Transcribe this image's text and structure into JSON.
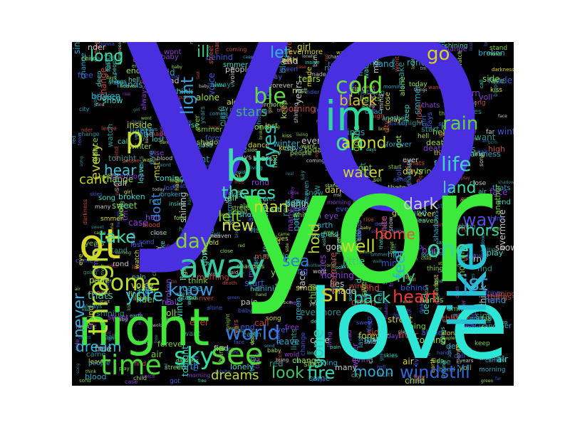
{
  "wordcloud": {
    "background": "#000000",
    "palette": [
      "#3dd9c8",
      "#2aa6c9",
      "#7ad13a",
      "#d8d82a",
      "#3b5bd6",
      "#c04a3a",
      "#8a3fd2",
      "#2c8f8f",
      "#c8c8c8",
      "#9be04a"
    ],
    "main_words": [
      {
        "text": "yo",
        "color": "#4a2fe0"
      },
      {
        "text": "yor",
        "color": "#3bea3b"
      },
      {
        "text": "love",
        "color": "#2ee6d6"
      },
      {
        "text": "like",
        "color": "#26c3d6"
      },
      {
        "text": "night",
        "color": "#43e43a"
      },
      {
        "text": "im",
        "color": "#2fd99a"
      },
      {
        "text": "bt",
        "color": "#3fe0a5"
      },
      {
        "text": "ot",
        "color": "#d9d92a"
      },
      {
        "text": "away",
        "color": "#3ac7a0"
      },
      {
        "text": "time",
        "color": "#4ad93a"
      },
      {
        "text": "throgh",
        "color": "#b8dd33"
      },
      {
        "text": "cold",
        "color": "#6be03b"
      },
      {
        "text": "oh",
        "color": "#3fe08f"
      },
      {
        "text": "one",
        "color": "#35d6a4"
      },
      {
        "text": "see",
        "color": "#55d936"
      },
      {
        "text": "sky",
        "color": "#2fdca3"
      },
      {
        "text": "come",
        "color": "#b6dc2f"
      },
      {
        "text": "world",
        "color": "#3b7be0"
      },
      {
        "text": "day",
        "color": "#83d43a"
      },
      {
        "text": "sn",
        "color": "#d0c928"
      },
      {
        "text": "heart",
        "color": "#e8393a"
      },
      {
        "text": "home",
        "color": "#e8503a"
      },
      {
        "text": "well",
        "color": "#c7db2e"
      },
      {
        "text": "jst",
        "color": "#39a8d8"
      },
      {
        "text": "back",
        "color": "#37d5a6"
      },
      {
        "text": "take",
        "color": "#3ddcb0"
      },
      {
        "text": "know",
        "color": "#3b9be0"
      },
      {
        "text": "p",
        "color": "#c8dd33"
      },
      {
        "text": "go",
        "color": "#d6d42a"
      },
      {
        "text": "rain",
        "color": "#5fd93a"
      },
      {
        "text": "life",
        "color": "#3fd3c6"
      },
      {
        "text": "fire",
        "color": "#39d6ad"
      },
      {
        "text": "moon",
        "color": "#35a7d6"
      },
      {
        "text": "windstill",
        "color": "#3464d8"
      },
      {
        "text": "dreams",
        "color": "#b8d838"
      },
      {
        "text": "look",
        "color": "#3ec46b"
      },
      {
        "text": "dream",
        "color": "#34b4d8"
      },
      {
        "text": "hear",
        "color": "#3fc3d9"
      },
      {
        "text": "theres",
        "color": "#3fdcaf"
      },
      {
        "text": "eyes",
        "color": "#2dc3b8"
      },
      {
        "text": "black",
        "color": "#d0c530"
      },
      {
        "text": "arond",
        "color": "#cfdc2f"
      },
      {
        "text": "water",
        "color": "#cdd73a"
      },
      {
        "text": "stars",
        "color": "#3ab86c"
      },
      {
        "text": "ble",
        "color": "#66d84a"
      },
      {
        "text": "let",
        "color": "#2fb3d4"
      },
      {
        "text": "long",
        "color": "#3fdca6"
      },
      {
        "text": "ill",
        "color": "#3ec77f"
      },
      {
        "text": "light",
        "color": "#3a9fd6"
      },
      {
        "text": "never",
        "color": "#3aa9d8"
      },
      {
        "text": "yore",
        "color": "#3ac4d6"
      },
      {
        "text": "sea",
        "color": "#2d7fd8"
      },
      {
        "text": "fly",
        "color": "#35c98a"
      },
      {
        "text": "feel",
        "color": "#2fb6c5"
      },
      {
        "text": "dark",
        "color": "#c8cfd6"
      },
      {
        "text": "way",
        "color": "#5a4ae0"
      },
      {
        "text": "land",
        "color": "#3fd6ae"
      },
      {
        "text": "chors",
        "color": "#35d5a2"
      },
      {
        "text": "man",
        "color": "#c9d52f"
      },
      {
        "text": "gone",
        "color": "#3ac7a8"
      },
      {
        "text": "hold",
        "color": "#b5d238"
      },
      {
        "text": "every",
        "color": "#c3c834"
      },
      {
        "text": "cant",
        "color": "#c7d030"
      },
      {
        "text": "dont",
        "color": "#3b7fd6"
      },
      {
        "text": "new",
        "color": "#cfe03a"
      },
      {
        "text": "left",
        "color": "#7fd43b"
      },
      {
        "text": "little",
        "color": "#40c86e"
      },
      {
        "text": "thats",
        "color": "#3fc6b0"
      }
    ],
    "filler_words": [
      "change",
      "side",
      "call",
      "trn",
      "wold",
      "death",
      "case",
      "living",
      "baby",
      "child",
      "voice",
      "eye",
      "watch",
      "yoll",
      "leave",
      "years",
      "face",
      "thats",
      "think",
      "song",
      "tears",
      "green",
      "smmer",
      "sol",
      "bcm",
      "shining",
      "rond",
      "street",
      "mst",
      "sond",
      "days",
      "girl",
      "said",
      "end",
      "fond",
      "rise",
      "got",
      "lonely",
      "coming",
      "wont",
      "start",
      "stand",
      "inside",
      "darkness",
      "keep",
      "hands",
      "find",
      "lost",
      "play",
      "make",
      "nder",
      "last",
      "high",
      "made",
      "want",
      "mind",
      "red",
      "snow",
      "white",
      "blood",
      "air",
      "evermore",
      "forever",
      "sing",
      "far",
      "hand",
      "walk",
      "real",
      "pain",
      "people",
      "behind",
      "river",
      "heaven",
      "free",
      "shadows",
      "lights",
      "close",
      "morning",
      "things",
      "came",
      "tonight",
      "always",
      "alone",
      "today",
      "another",
      "kiss",
      "sweet",
      "bring",
      "earth",
      "nothing",
      "skies",
      "dead",
      "winter",
      "deep",
      "dance",
      "city",
      "many",
      "lies",
      "hell",
      "ever",
      "going",
      "say",
      "gonna",
      "broken"
    ]
  }
}
